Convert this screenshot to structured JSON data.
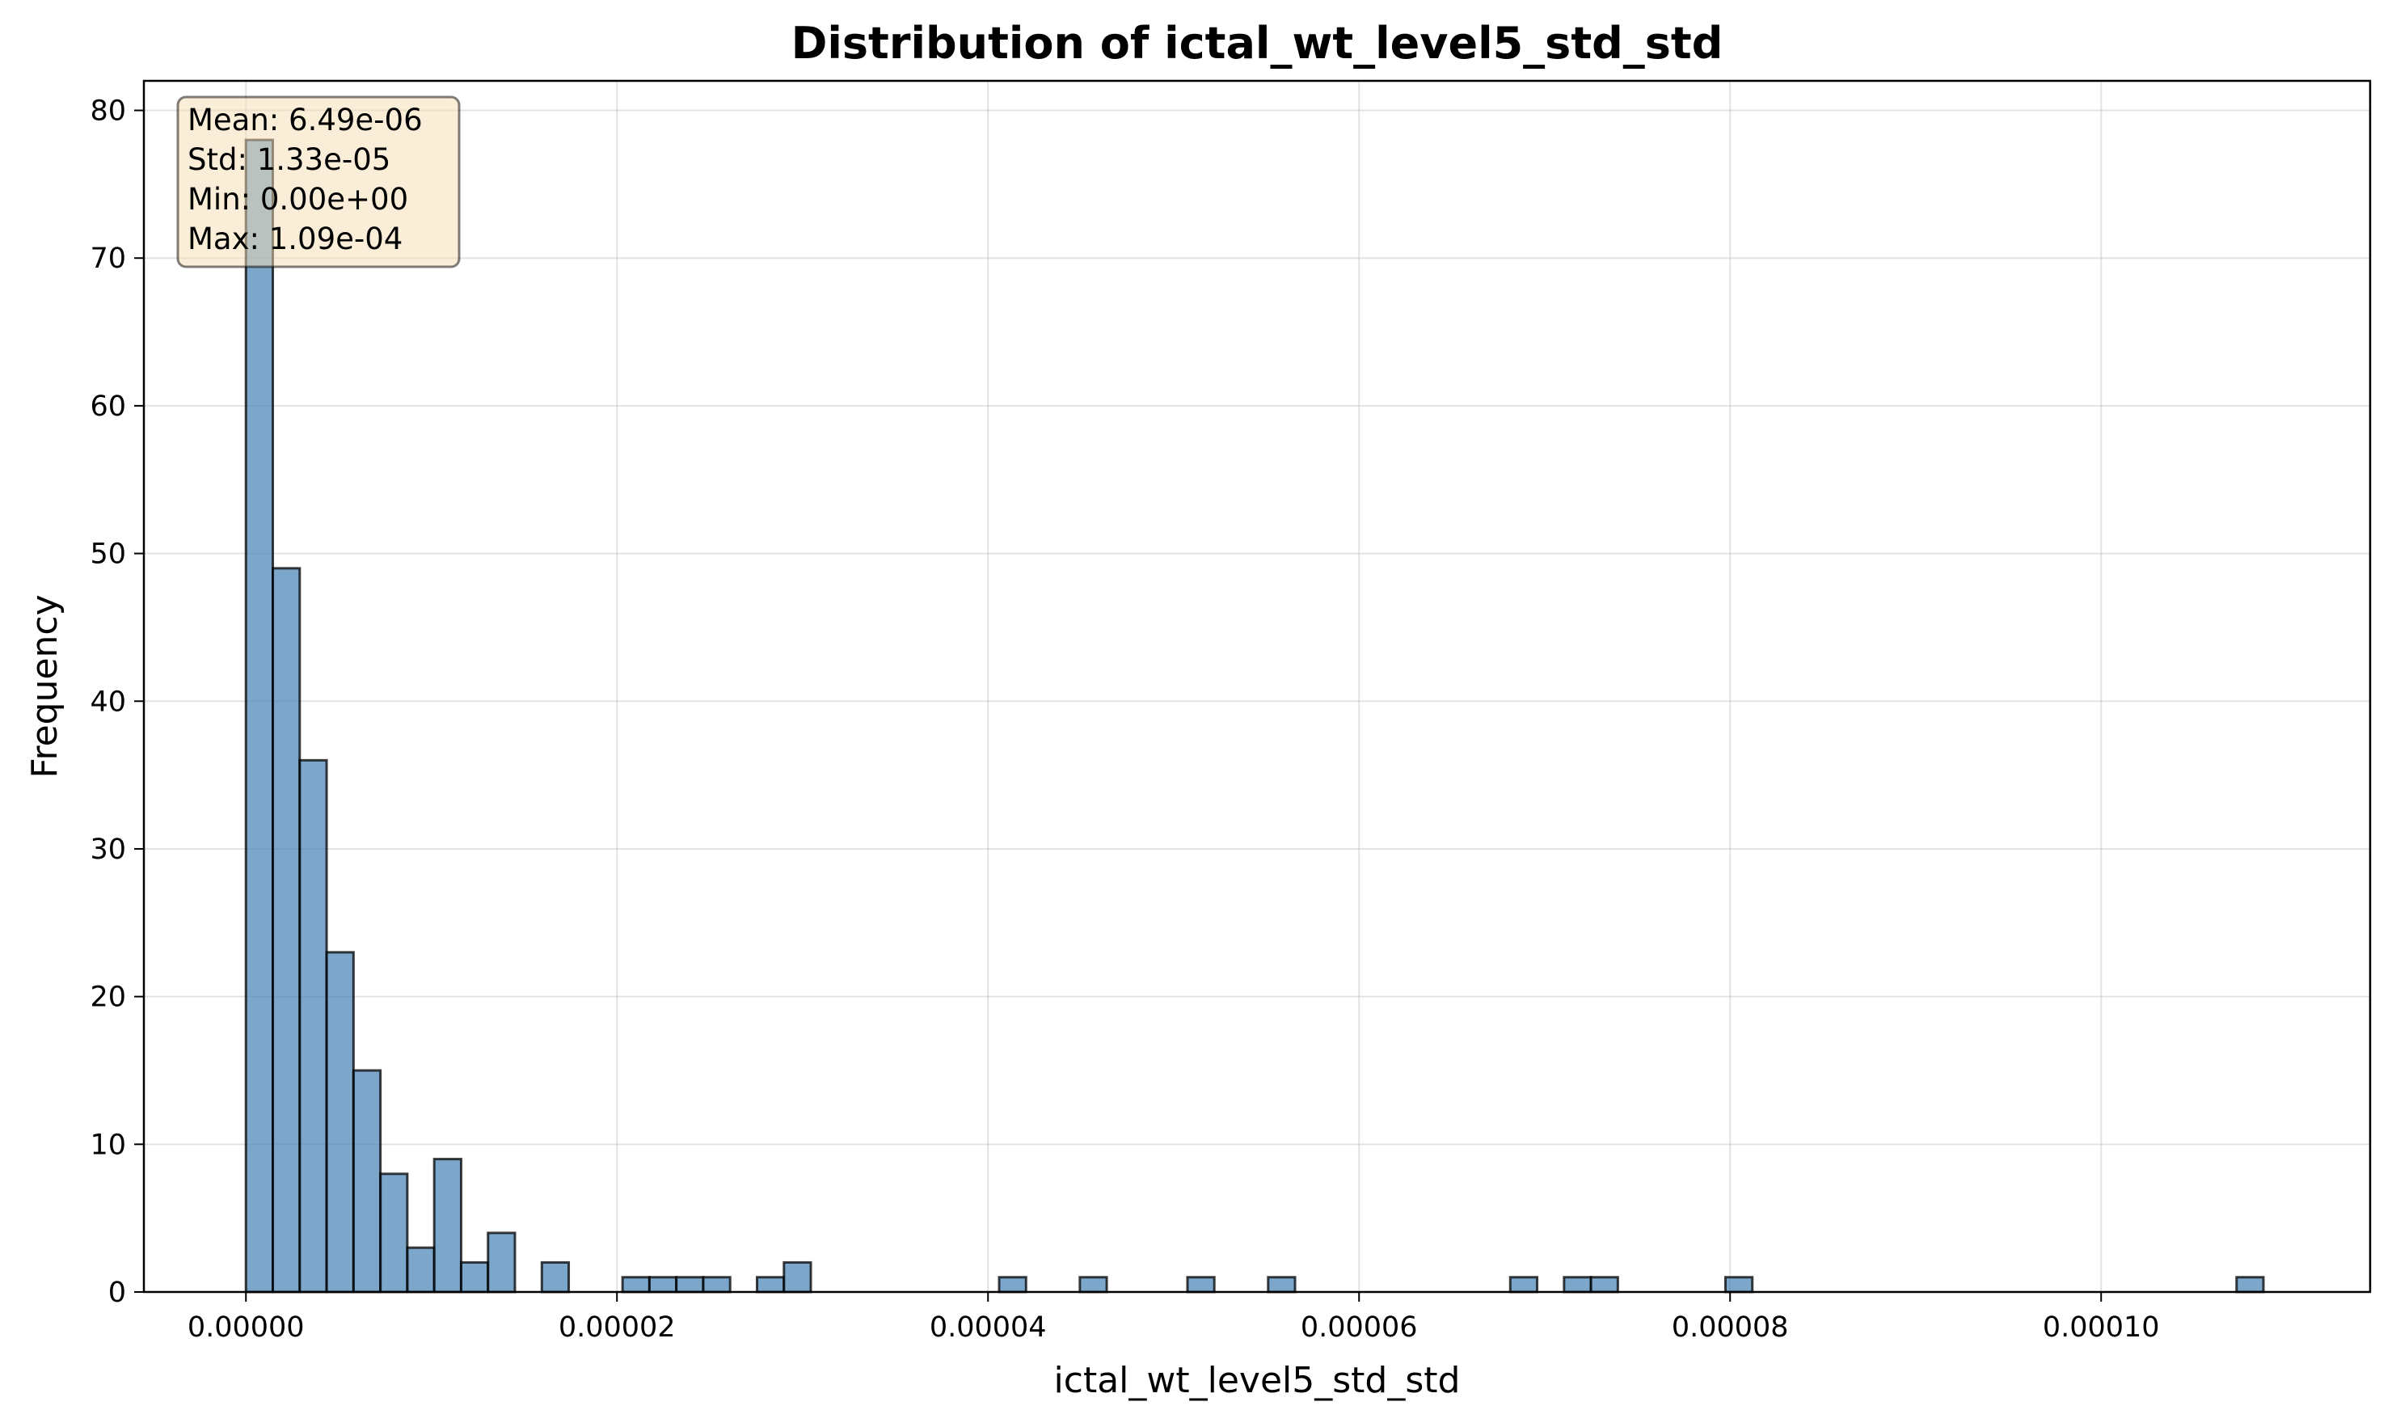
{
  "chart_data": {
    "type": "bar",
    "title": "Distribution of ictal_wt_level5_std_std",
    "xlabel": "ictal_wt_level5_std_std",
    "ylabel": "Frequency",
    "xlim": [
      -5.5e-06,
      0.0001145
    ],
    "ylim": [
      0,
      82
    ],
    "grid": true,
    "x_ticks": [
      0,
      2e-05,
      4e-05,
      6e-05,
      8e-05,
      0.0001
    ],
    "x_tick_labels": [
      "0.00000",
      "0.00002",
      "0.00004",
      "0.00006",
      "0.00008",
      "0.00010"
    ],
    "y_ticks": [
      0,
      10,
      20,
      30,
      40,
      50,
      60,
      70,
      80
    ],
    "y_tick_labels": [
      "0",
      "10",
      "20",
      "30",
      "40",
      "50",
      "60",
      "70",
      "80"
    ],
    "bin_start": 0,
    "bin_width": 1.45e-06,
    "counts": [
      78,
      49,
      36,
      23,
      15,
      8,
      3,
      9,
      2,
      4,
      0,
      2,
      0,
      0,
      1,
      1,
      1,
      1,
      0,
      1,
      2,
      0,
      0,
      0,
      0,
      0,
      0,
      0,
      1,
      0,
      0,
      1,
      0,
      0,
      0,
      1,
      0,
      0,
      1,
      0,
      0,
      0,
      0,
      0,
      0,
      0,
      0,
      1,
      0,
      1,
      1,
      0,
      0,
      0,
      0,
      1,
      0,
      0,
      0,
      0,
      0,
      0,
      0,
      0,
      0,
      0,
      0,
      0,
      0,
      0,
      0,
      0,
      0,
      0,
      1
    ],
    "stats_box": {
      "lines": [
        "Mean: 6.49e-06",
        "Std: 1.33e-05",
        "Min: 0.00e+00",
        "Max: 1.09e-04"
      ],
      "placement": "top-left"
    },
    "colors": {
      "bar": "#4682b4",
      "stats_box": "#f5deb3"
    }
  }
}
